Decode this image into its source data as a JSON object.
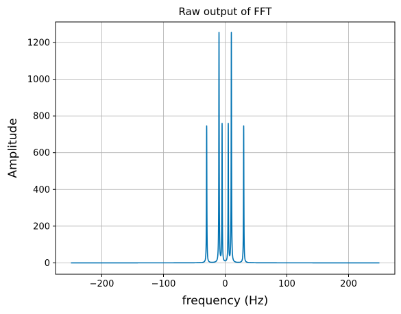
{
  "chart_data": {
    "type": "line",
    "title": "Raw output of FFT",
    "xlabel": "frequency (Hz)",
    "ylabel": "Amplitude",
    "xlim": [
      -275,
      275
    ],
    "ylim": [
      -62,
      1312
    ],
    "grid": true,
    "xticks": [
      -200,
      -100,
      0,
      100,
      200
    ],
    "xtick_labels": [
      "−200",
      "−100",
      "0",
      "100",
      "200"
    ],
    "yticks": [
      0,
      200,
      400,
      600,
      800,
      1000,
      1200
    ],
    "ytick_labels": [
      "0",
      "200",
      "400",
      "600",
      "800",
      "1000",
      "1200"
    ],
    "line_color": "#0072b2",
    "x_range": [
      -250,
      250
    ],
    "baseline": 0,
    "peaks": [
      {
        "x": -30,
        "y": 745
      },
      {
        "x": -10,
        "y": 1250
      },
      {
        "x": -5,
        "y": 752
      },
      {
        "x": 5,
        "y": 752
      },
      {
        "x": 10,
        "y": 1250
      },
      {
        "x": 30,
        "y": 745
      }
    ]
  }
}
